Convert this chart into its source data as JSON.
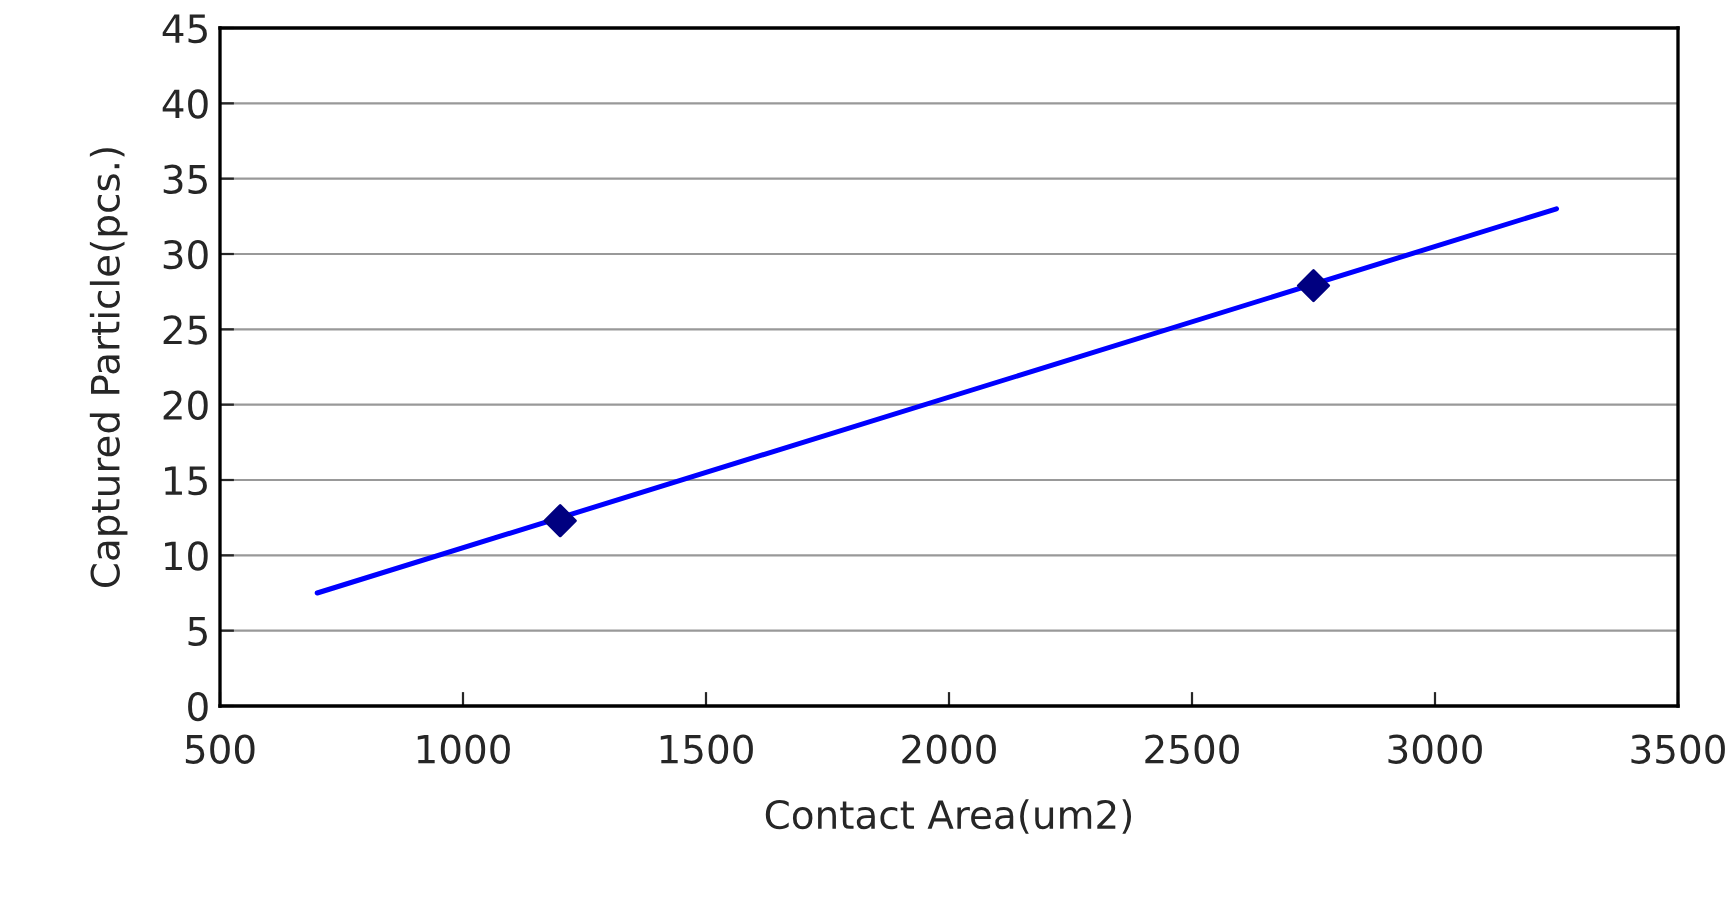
{
  "chart_data": {
    "type": "scatter",
    "xlabel": "Contact Area(um2)",
    "ylabel": "Captured Particle(pcs.)",
    "series": [
      {
        "color": "#000080",
        "marker": "diamond",
        "x": [
          1200,
          2750
        ],
        "values": [
          12.3,
          27.9
        ]
      },
      {
        "type": "line",
        "color": "#0000ff",
        "marker": "none",
        "line_style": "solid",
        "x": [
          700,
          3250
        ],
        "values": [
          7.5,
          33
        ]
      }
    ],
    "xlim": [
      500,
      3500
    ],
    "xticks": [
      500,
      1000,
      1500,
      2000,
      2500,
      3000,
      3500
    ],
    "ylim": [
      0,
      45
    ],
    "yticks": [
      0,
      5,
      10,
      15,
      20,
      25,
      30,
      35,
      40,
      45
    ],
    "grid": "y",
    "legend": false
  }
}
